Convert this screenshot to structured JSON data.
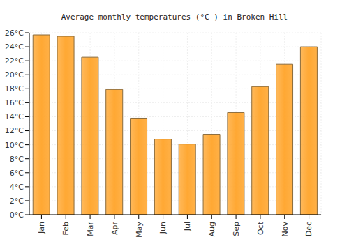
{
  "chart_data": {
    "type": "bar",
    "title": "Average monthly temperatures (°C ) in Broken Hill",
    "categories": [
      "Jan",
      "Feb",
      "Mar",
      "Apr",
      "May",
      "Jun",
      "Jul",
      "Aug",
      "Sep",
      "Oct",
      "Nov",
      "Dec"
    ],
    "values": [
      25.7,
      25.5,
      22.5,
      17.9,
      13.8,
      10.8,
      10.1,
      11.5,
      14.6,
      18.3,
      21.5,
      24.0
    ],
    "color": "#ffa833",
    "ylim": [
      0,
      26
    ],
    "yticks": [
      {
        "value": 0,
        "label": "0°C"
      },
      {
        "value": 2,
        "label": "2°C"
      },
      {
        "value": 4,
        "label": "4°C"
      },
      {
        "value": 6,
        "label": "6°C"
      },
      {
        "value": 8,
        "label": "8°C"
      },
      {
        "value": 10,
        "label": "10°C"
      },
      {
        "value": 12,
        "label": "12°C"
      },
      {
        "value": 14,
        "label": "14°C"
      },
      {
        "value": 16,
        "label": "16°C"
      },
      {
        "value": 18,
        "label": "18°C"
      },
      {
        "value": 20,
        "label": "20°C"
      },
      {
        "value": 22,
        "label": "22°C"
      },
      {
        "value": 24,
        "label": "24°C"
      },
      {
        "value": 26,
        "label": "26°C"
      }
    ],
    "grid": true
  }
}
